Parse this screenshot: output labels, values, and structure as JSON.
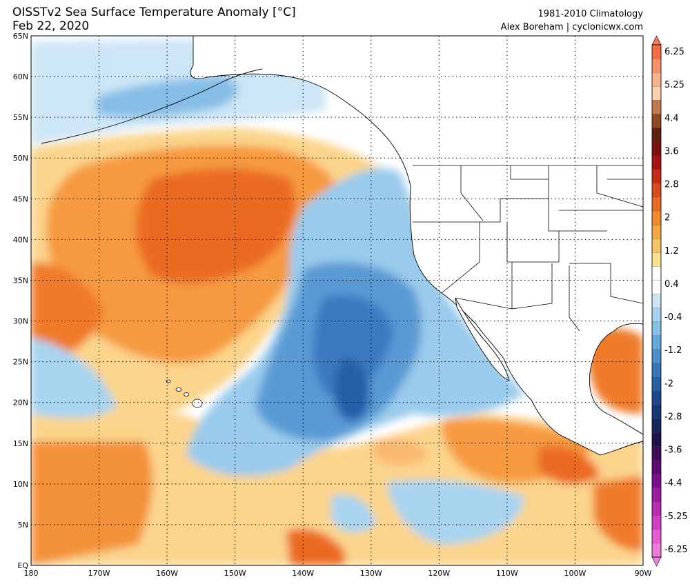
{
  "header": {
    "title_line1": "OISSTv2 Sea Surface Temperature Anomaly [°C]",
    "title_line2": "Feb 22, 2020",
    "right_line1": "1981-2010 Climatology",
    "right_line2": "Alex Boreham | cyclonicwx.com"
  },
  "map": {
    "lon_range": [
      -180,
      -90
    ],
    "lat_range": [
      0,
      65
    ],
    "lat_labels": [
      "65N",
      "60N",
      "55N",
      "50N",
      "45N",
      "40N",
      "35N",
      "30N",
      "25N",
      "20N",
      "15N",
      "10N",
      "5N",
      "EQ"
    ],
    "lon_labels": [
      "180",
      "170W",
      "160W",
      "150W",
      "140W",
      "130W",
      "120W",
      "110W",
      "100W",
      "90W"
    ],
    "grid": "dotted"
  },
  "colorbar": {
    "labels": [
      "6.25",
      "5.25",
      "4.4",
      "3.6",
      "2.8",
      "2",
      "1.2",
      "0.4",
      "-0.4",
      "-1.2",
      "-2",
      "-2.8",
      "-3.6",
      "-4.4",
      "-5.25",
      "-6.25"
    ],
    "colors": [
      "#f46d43",
      "#f7916b",
      "#f9b38f",
      "#fbd1b4",
      "#c07a52",
      "#8e4a22",
      "#5e2010",
      "#7a1010",
      "#a61414",
      "#c62a18",
      "#db4a1c",
      "#e96a22",
      "#f28a2e",
      "#f6a640",
      "#f9c462",
      "#fde08c",
      "#ffffff",
      "#ffffff",
      "#c8e4f6",
      "#a6d2f0",
      "#84bfe8",
      "#62a8dc",
      "#4a8fcc",
      "#3676b8",
      "#285ea2",
      "#1e468a",
      "#183472",
      "#15245a",
      "#1a1448",
      "#3c0c54",
      "#5c0870",
      "#7a108a",
      "#9a1c9e",
      "#b82cb0",
      "#d23ec0",
      "#e85ad0",
      "#f07ad8"
    ]
  }
}
